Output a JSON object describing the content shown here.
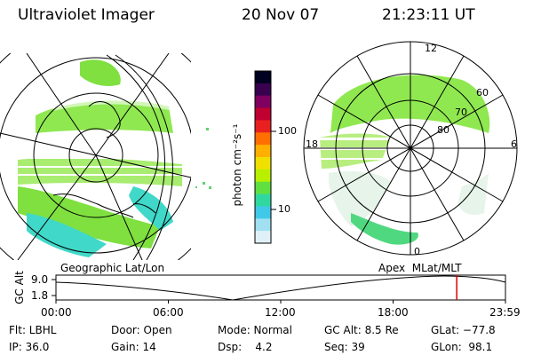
{
  "header": {
    "instrument": "Ultraviolet Imager",
    "date": "20 Nov 07",
    "time": "21:23:11 UT"
  },
  "left_map": {
    "label": "Geographic Lat/Lon"
  },
  "right_map": {
    "label": "Apex  MLat/MLT",
    "mlt_labels": [
      "12",
      "18",
      "6",
      "0"
    ],
    "mlat_labels": [
      "60",
      "70",
      "80"
    ]
  },
  "colorbar": {
    "label": "photon cm⁻²s⁻¹",
    "ticks": [
      "100",
      "10"
    ],
    "colors": [
      "#000020",
      "#3a0050",
      "#800060",
      "#c00030",
      "#e82020",
      "#ff7000",
      "#ffb000",
      "#f0e000",
      "#b8f000",
      "#60e040",
      "#30d8a0",
      "#40c8e8",
      "#a0e0f0",
      "#e0f0f8"
    ]
  },
  "timeline": {
    "ylabel": "GC Alt",
    "ytick_top": "9.0",
    "ytick_bottom": "1.8",
    "xticks": [
      "00:00",
      "06:00",
      "12:00",
      "18:00",
      "23:59"
    ],
    "marker_time": "21:23",
    "marker_color": "#e00000"
  },
  "footer": {
    "filter": "Flt: LBHL",
    "ip": "IP: 36.0",
    "door": "Door: Open",
    "gain": "Gain: 14",
    "mode": "Mode: Normal",
    "dsp": "Dsp:    4.2",
    "gc_alt": "GC Alt: 8.5 Re",
    "seq": "Seq: 39",
    "glat": "GLat: −77.8",
    "glon": "GLon:  98.1"
  }
}
